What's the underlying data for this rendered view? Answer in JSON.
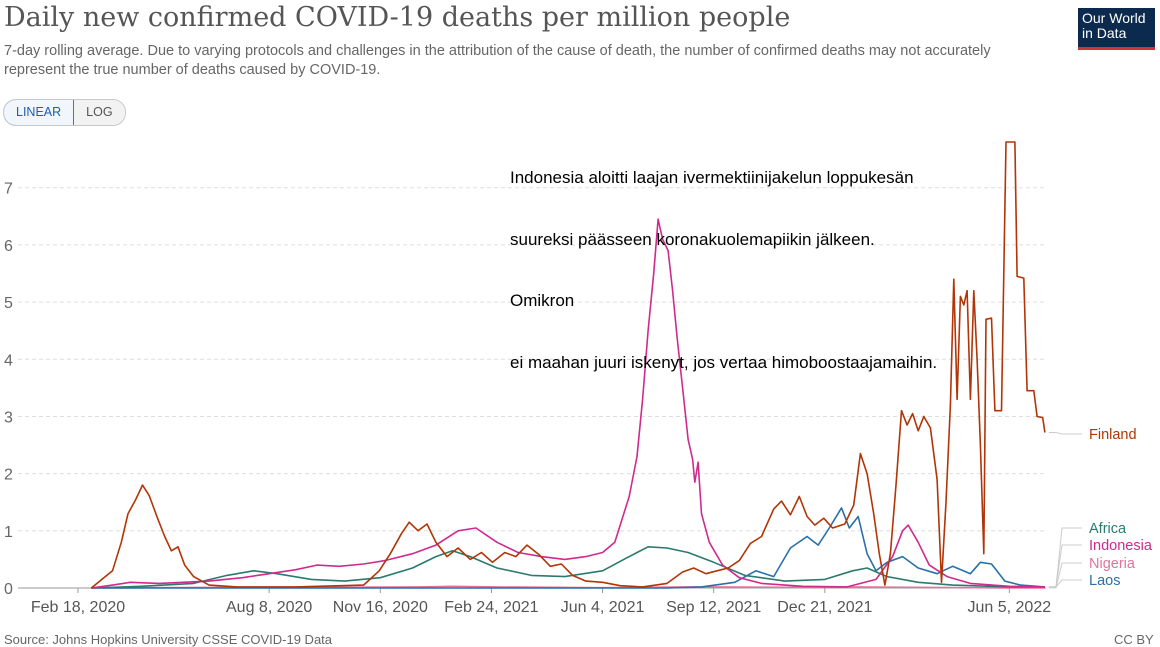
{
  "header": {
    "title": "Daily new confirmed COVID-19 deaths per million people",
    "subtitle": "7-day rolling average. Due to varying protocols and challenges in the attribution of the cause of death, the number of confirmed deaths may not accurately represent the true number of deaths caused by COVID-19.",
    "logo_line1": "Our World",
    "logo_line2": "in Data"
  },
  "toggle": {
    "linear_label": "LINEAR",
    "log_label": "LOG",
    "selected": "LINEAR"
  },
  "annotation": {
    "lines": [
      "Indonesia aloitti laajan ivermektiinijakelun loppukesän",
      "suureksi päässeen koronakuolemapiikin jälkeen.",
      "Omikron",
      "ei maahan juuri iskenyt, jos vertaa himoboostaajamaihin."
    ]
  },
  "footer": {
    "source": "Source: Johns Hopkins University CSSE COVID-19 Data",
    "license": "CC BY"
  },
  "chart_data": {
    "type": "line",
    "x_range": [
      "2020-01-22",
      "2022-07-08"
    ],
    "ylim": [
      0,
      7.8
    ],
    "y_ticks": [
      0,
      1,
      2,
      3,
      4,
      5,
      6,
      7
    ],
    "x_ticks": [
      {
        "date": "2020-02-18",
        "label": "Feb 18, 2020"
      },
      {
        "date": "2020-08-08",
        "label": "Aug 8, 2020"
      },
      {
        "date": "2020-11-16",
        "label": "Nov 16, 2020"
      },
      {
        "date": "2021-02-24",
        "label": "Feb 24, 2021"
      },
      {
        "date": "2021-06-04",
        "label": "Jun 4, 2021"
      },
      {
        "date": "2021-09-12",
        "label": "Sep 12, 2021"
      },
      {
        "date": "2021-12-21",
        "label": "Dec 21, 2021"
      },
      {
        "date": "2022-06-05",
        "label": "Jun 5, 2022"
      }
    ],
    "grid": true,
    "legend_position": "right",
    "series": [
      {
        "name": "Finland",
        "color": "#b13507",
        "points": [
          [
            "2020-03-01",
            0
          ],
          [
            "2020-03-20",
            0.3
          ],
          [
            "2020-03-28",
            0.8
          ],
          [
            "2020-04-03",
            1.3
          ],
          [
            "2020-04-10",
            1.55
          ],
          [
            "2020-04-16",
            1.8
          ],
          [
            "2020-04-22",
            1.62
          ],
          [
            "2020-04-30",
            1.2
          ],
          [
            "2020-05-06",
            0.9
          ],
          [
            "2020-05-12",
            0.65
          ],
          [
            "2020-05-18",
            0.72
          ],
          [
            "2020-05-24",
            0.4
          ],
          [
            "2020-06-01",
            0.2
          ],
          [
            "2020-06-15",
            0.05
          ],
          [
            "2020-07-10",
            0.02
          ],
          [
            "2020-09-01",
            0.02
          ],
          [
            "2020-11-01",
            0.05
          ],
          [
            "2020-11-15",
            0.3
          ],
          [
            "2020-11-25",
            0.6
          ],
          [
            "2020-12-05",
            0.95
          ],
          [
            "2020-12-12",
            1.15
          ],
          [
            "2020-12-20",
            1.0
          ],
          [
            "2020-12-28",
            1.12
          ],
          [
            "2021-01-05",
            0.8
          ],
          [
            "2021-01-15",
            0.55
          ],
          [
            "2021-01-25",
            0.7
          ],
          [
            "2021-02-05",
            0.5
          ],
          [
            "2021-02-15",
            0.62
          ],
          [
            "2021-02-25",
            0.45
          ],
          [
            "2021-03-08",
            0.62
          ],
          [
            "2021-03-18",
            0.55
          ],
          [
            "2021-03-28",
            0.75
          ],
          [
            "2021-04-08",
            0.58
          ],
          [
            "2021-04-18",
            0.38
          ],
          [
            "2021-04-28",
            0.42
          ],
          [
            "2021-05-08",
            0.22
          ],
          [
            "2021-05-20",
            0.12
          ],
          [
            "2021-06-04",
            0.1
          ],
          [
            "2021-06-20",
            0.04
          ],
          [
            "2021-07-10",
            0.02
          ],
          [
            "2021-08-01",
            0.08
          ],
          [
            "2021-08-15",
            0.28
          ],
          [
            "2021-08-25",
            0.35
          ],
          [
            "2021-09-05",
            0.25
          ],
          [
            "2021-09-15",
            0.3
          ],
          [
            "2021-09-25",
            0.35
          ],
          [
            "2021-10-05",
            0.48
          ],
          [
            "2021-10-15",
            0.78
          ],
          [
            "2021-10-25",
            0.9
          ],
          [
            "2021-11-05",
            1.38
          ],
          [
            "2021-11-12",
            1.52
          ],
          [
            "2021-11-20",
            1.28
          ],
          [
            "2021-11-28",
            1.6
          ],
          [
            "2021-12-05",
            1.25
          ],
          [
            "2021-12-12",
            1.1
          ],
          [
            "2021-12-20",
            1.22
          ],
          [
            "2021-12-28",
            1.05
          ],
          [
            "2022-01-08",
            1.12
          ],
          [
            "2022-01-16",
            1.45
          ],
          [
            "2022-01-22",
            2.35
          ],
          [
            "2022-01-28",
            2.0
          ],
          [
            "2022-02-03",
            1.3
          ],
          [
            "2022-02-08",
            0.6
          ],
          [
            "2022-02-13",
            0.05
          ],
          [
            "2022-02-18",
            0.6
          ],
          [
            "2022-02-23",
            1.8
          ],
          [
            "2022-02-28",
            3.1
          ],
          [
            "2022-03-05",
            2.85
          ],
          [
            "2022-03-10",
            3.05
          ],
          [
            "2022-03-15",
            2.75
          ],
          [
            "2022-03-20",
            3.0
          ],
          [
            "2022-03-26",
            2.8
          ],
          [
            "2022-04-01",
            1.9
          ],
          [
            "2022-04-05",
            0.1
          ],
          [
            "2022-04-09",
            1.5
          ],
          [
            "2022-04-13",
            3.2
          ],
          [
            "2022-04-16",
            5.4
          ],
          [
            "2022-04-19",
            3.3
          ],
          [
            "2022-04-22",
            5.1
          ],
          [
            "2022-04-25",
            4.95
          ],
          [
            "2022-04-28",
            5.2
          ],
          [
            "2022-05-01",
            3.3
          ],
          [
            "2022-05-04",
            5.2
          ],
          [
            "2022-05-07",
            4.0
          ],
          [
            "2022-05-10",
            2.5
          ],
          [
            "2022-05-13",
            0.6
          ],
          [
            "2022-05-15",
            4.7
          ],
          [
            "2022-05-20",
            4.72
          ],
          [
            "2022-05-23",
            3.1
          ],
          [
            "2022-05-29",
            3.1
          ],
          [
            "2022-06-02",
            7.8
          ],
          [
            "2022-06-10",
            7.8
          ],
          [
            "2022-06-12",
            5.45
          ],
          [
            "2022-06-18",
            5.42
          ],
          [
            "2022-06-21",
            3.45
          ],
          [
            "2022-06-27",
            3.45
          ],
          [
            "2022-06-30",
            3.0
          ],
          [
            "2022-07-05",
            2.98
          ],
          [
            "2022-07-07",
            2.72
          ]
        ]
      },
      {
        "name": "Africa",
        "color": "#2a7a6f",
        "points": [
          [
            "2020-03-01",
            0
          ],
          [
            "2020-04-15",
            0.03
          ],
          [
            "2020-06-01",
            0.08
          ],
          [
            "2020-07-01",
            0.22
          ],
          [
            "2020-07-25",
            0.3
          ],
          [
            "2020-08-15",
            0.25
          ],
          [
            "2020-09-15",
            0.15
          ],
          [
            "2020-10-15",
            0.12
          ],
          [
            "2020-11-16",
            0.18
          ],
          [
            "2020-12-15",
            0.35
          ],
          [
            "2021-01-05",
            0.55
          ],
          [
            "2021-01-20",
            0.65
          ],
          [
            "2021-02-05",
            0.55
          ],
          [
            "2021-03-01",
            0.35
          ],
          [
            "2021-04-01",
            0.22
          ],
          [
            "2021-05-01",
            0.2
          ],
          [
            "2021-06-04",
            0.3
          ],
          [
            "2021-06-25",
            0.52
          ],
          [
            "2021-07-15",
            0.72
          ],
          [
            "2021-08-01",
            0.7
          ],
          [
            "2021-08-20",
            0.62
          ],
          [
            "2021-09-12",
            0.45
          ],
          [
            "2021-10-10",
            0.22
          ],
          [
            "2021-11-15",
            0.12
          ],
          [
            "2021-12-21",
            0.15
          ],
          [
            "2022-01-15",
            0.3
          ],
          [
            "2022-01-28",
            0.35
          ],
          [
            "2022-02-15",
            0.2
          ],
          [
            "2022-03-15",
            0.1
          ],
          [
            "2022-04-15",
            0.05
          ],
          [
            "2022-06-05",
            0.02
          ],
          [
            "2022-07-07",
            0.02
          ]
        ]
      },
      {
        "name": "Indonesia",
        "color": "#cf2a8e",
        "points": [
          [
            "2020-03-01",
            0
          ],
          [
            "2020-03-20",
            0.05
          ],
          [
            "2020-04-05",
            0.1
          ],
          [
            "2020-05-01",
            0.08
          ],
          [
            "2020-06-15",
            0.12
          ],
          [
            "2020-07-15",
            0.18
          ],
          [
            "2020-08-08",
            0.25
          ],
          [
            "2020-09-01",
            0.32
          ],
          [
            "2020-09-20",
            0.4
          ],
          [
            "2020-10-10",
            0.38
          ],
          [
            "2020-11-01",
            0.42
          ],
          [
            "2020-11-20",
            0.48
          ],
          [
            "2020-12-15",
            0.6
          ],
          [
            "2021-01-05",
            0.75
          ],
          [
            "2021-01-25",
            1.0
          ],
          [
            "2021-02-10",
            1.05
          ],
          [
            "2021-03-01",
            0.8
          ],
          [
            "2021-03-20",
            0.62
          ],
          [
            "2021-04-10",
            0.55
          ],
          [
            "2021-05-01",
            0.5
          ],
          [
            "2021-05-20",
            0.55
          ],
          [
            "2021-06-04",
            0.62
          ],
          [
            "2021-06-15",
            0.8
          ],
          [
            "2021-06-28",
            1.6
          ],
          [
            "2021-07-05",
            2.3
          ],
          [
            "2021-07-10",
            3.3
          ],
          [
            "2021-07-15",
            4.5
          ],
          [
            "2021-07-20",
            5.5
          ],
          [
            "2021-07-24",
            6.45
          ],
          [
            "2021-07-28",
            6.1
          ],
          [
            "2021-08-02",
            5.9
          ],
          [
            "2021-08-06",
            5.2
          ],
          [
            "2021-08-10",
            4.4
          ],
          [
            "2021-08-15",
            3.5
          ],
          [
            "2021-08-20",
            2.6
          ],
          [
            "2021-08-24",
            2.25
          ],
          [
            "2021-08-26",
            1.85
          ],
          [
            "2021-08-29",
            2.2
          ],
          [
            "2021-09-01",
            1.3
          ],
          [
            "2021-09-08",
            0.8
          ],
          [
            "2021-09-20",
            0.4
          ],
          [
            "2021-10-05",
            0.18
          ],
          [
            "2021-10-25",
            0.08
          ],
          [
            "2021-12-01",
            0.03
          ],
          [
            "2022-01-10",
            0.02
          ],
          [
            "2022-02-05",
            0.15
          ],
          [
            "2022-02-20",
            0.55
          ],
          [
            "2022-03-01",
            1.0
          ],
          [
            "2022-03-06",
            1.1
          ],
          [
            "2022-03-15",
            0.8
          ],
          [
            "2022-03-25",
            0.4
          ],
          [
            "2022-04-10",
            0.2
          ],
          [
            "2022-05-01",
            0.08
          ],
          [
            "2022-06-05",
            0.03
          ],
          [
            "2022-07-07",
            0.02
          ]
        ]
      },
      {
        "name": "Nigeria",
        "color": "#e3739c",
        "points": [
          [
            "2020-03-01",
            0
          ],
          [
            "2020-04-20",
            0.005
          ],
          [
            "2020-06-15",
            0.01
          ],
          [
            "2020-08-08",
            0.01
          ],
          [
            "2020-12-20",
            0.02
          ],
          [
            "2021-01-20",
            0.03
          ],
          [
            "2021-03-01",
            0.02
          ],
          [
            "2021-06-01",
            0.005
          ],
          [
            "2021-08-20",
            0.02
          ],
          [
            "2021-09-12",
            0.02
          ],
          [
            "2021-12-21",
            0.01
          ],
          [
            "2022-01-15",
            0.02
          ],
          [
            "2022-06-05",
            0.002
          ],
          [
            "2022-07-07",
            0.002
          ]
        ]
      },
      {
        "name": "Laos",
        "color": "#2a6fa8",
        "points": [
          [
            "2020-03-01",
            0
          ],
          [
            "2021-08-01",
            0
          ],
          [
            "2021-09-01",
            0.02
          ],
          [
            "2021-10-01",
            0.1
          ],
          [
            "2021-10-20",
            0.3
          ],
          [
            "2021-11-05",
            0.2
          ],
          [
            "2021-11-20",
            0.7
          ],
          [
            "2021-12-05",
            0.9
          ],
          [
            "2021-12-15",
            0.75
          ],
          [
            "2021-12-25",
            1.05
          ],
          [
            "2022-01-05",
            1.4
          ],
          [
            "2022-01-12",
            1.05
          ],
          [
            "2022-01-20",
            1.25
          ],
          [
            "2022-01-28",
            0.6
          ],
          [
            "2022-02-05",
            0.3
          ],
          [
            "2022-02-15",
            0.45
          ],
          [
            "2022-03-01",
            0.55
          ],
          [
            "2022-03-15",
            0.35
          ],
          [
            "2022-04-01",
            0.25
          ],
          [
            "2022-04-15",
            0.38
          ],
          [
            "2022-05-01",
            0.25
          ],
          [
            "2022-05-10",
            0.45
          ],
          [
            "2022-05-20",
            0.42
          ],
          [
            "2022-06-01",
            0.12
          ],
          [
            "2022-06-15",
            0.05
          ],
          [
            "2022-07-07",
            0.02
          ]
        ]
      }
    ]
  }
}
